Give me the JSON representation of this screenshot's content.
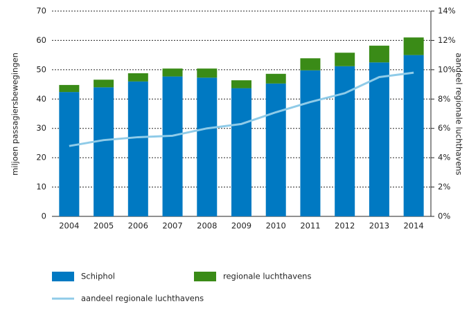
{
  "chart_data": {
    "type": "bar",
    "stacked": true,
    "categories": [
      "2004",
      "2005",
      "2006",
      "2007",
      "2008",
      "2009",
      "2010",
      "2011",
      "2012",
      "2013",
      "2014"
    ],
    "ylabel": "miljoen passagiersbewegingen",
    "y2label": "aandeel regionale luchthavens",
    "ylim": [
      0,
      70
    ],
    "yticks": [
      0,
      10,
      20,
      30,
      40,
      50,
      60,
      70
    ],
    "y2lim": [
      0,
      14
    ],
    "y2ticks": [
      {
        "value": 0,
        "label": "0%"
      },
      {
        "value": 2,
        "label": "2%"
      },
      {
        "value": 4,
        "label": "4%"
      },
      {
        "value": 6,
        "label": "6%"
      },
      {
        "value": 8,
        "label": "8%"
      },
      {
        "value": 10,
        "label": "10%"
      },
      {
        "value": 12,
        "label": "12%"
      },
      {
        "value": 14,
        "label": "14%"
      }
    ],
    "grid": true,
    "series": [
      {
        "name": "Schiphol",
        "color": "#0079c2",
        "type": "bar",
        "values": [
          42.4,
          44,
          46,
          47.7,
          47.3,
          43.7,
          45.3,
          49.8,
          51.2,
          52.5,
          55
        ]
      },
      {
        "name": "regionale luchthavens",
        "color": "#3a8b17",
        "type": "bar",
        "values": [
          2.4,
          2.6,
          2.8,
          2.7,
          3.1,
          2.7,
          3.3,
          4.1,
          4.6,
          5.7,
          6.0
        ]
      },
      {
        "name": "aandeel regionale luchthavens",
        "color": "#8fcbe8",
        "type": "line",
        "axis": "y2",
        "values": [
          4.8,
          5.2,
          5.4,
          5.5,
          6.0,
          6.3,
          7.1,
          7.8,
          8.4,
          9.5,
          9.8
        ]
      }
    ]
  }
}
